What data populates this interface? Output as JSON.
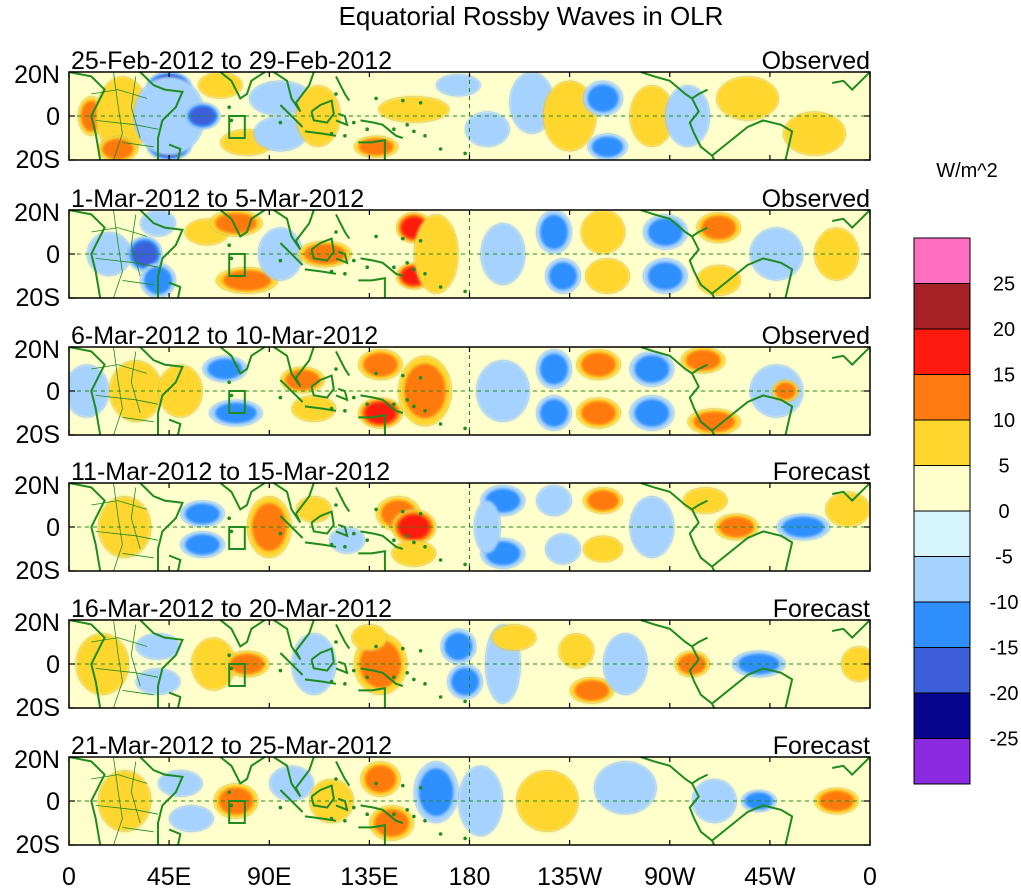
{
  "chart_data": {
    "type": "heatmap",
    "title": "Equatorial Rossby Waves in OLR",
    "units": "W/m^2",
    "x_ticks": [
      "0",
      "45E",
      "90E",
      "135E",
      "180",
      "135W",
      "90W",
      "45W",
      "0"
    ],
    "x_range_deg_east": [
      0,
      360
    ],
    "y_ticks": [
      "20N",
      "0",
      "20S"
    ],
    "y_range_deg": [
      -20,
      20
    ],
    "colorbar": {
      "levels": [
        "25",
        "20",
        "15",
        "10",
        "5",
        "0",
        "-5",
        "-10",
        "-15",
        "-20",
        "-25"
      ],
      "colors": [
        "#ff6fc0",
        "#a52125",
        "#ff1a10",
        "#ff7a10",
        "#ffd62e",
        "#ffffcc",
        "#d6f5ff",
        "#a6d2ff",
        "#2f8fff",
        "#3d5fd9",
        "#06068f",
        "#8a2be2"
      ]
    },
    "panels": [
      {
        "date_range": "25-Feb-2012 to 29-Feb-2012",
        "label": "Observed",
        "features": [
          {
            "lon": 10,
            "lat": 0,
            "w": 6,
            "h": 9,
            "v": 11
          },
          {
            "lon": 24,
            "lat": 0,
            "w": 12,
            "h": 18,
            "v": 5
          },
          {
            "lon": 22,
            "lat": -15,
            "w": 9,
            "h": 6,
            "v": 13
          },
          {
            "lon": 45,
            "lat": 14,
            "w": 10,
            "h": 6,
            "v": -20
          },
          {
            "lon": 45,
            "lat": -14,
            "w": 10,
            "h": 6,
            "v": -22
          },
          {
            "lon": 45,
            "lat": 0,
            "w": 16,
            "h": 18,
            "v": -9
          },
          {
            "lon": 60,
            "lat": 0,
            "w": 8,
            "h": 6,
            "v": -15
          },
          {
            "lon": 68,
            "lat": 14,
            "w": 10,
            "h": 6,
            "v": 6
          },
          {
            "lon": 80,
            "lat": -12,
            "w": 12,
            "h": 6,
            "v": 5
          },
          {
            "lon": 95,
            "lat": 8,
            "w": 14,
            "h": 8,
            "v": -6
          },
          {
            "lon": 95,
            "lat": -8,
            "w": 12,
            "h": 8,
            "v": -8
          },
          {
            "lon": 112,
            "lat": 0,
            "w": 10,
            "h": 14,
            "v": 6
          },
          {
            "lon": 138,
            "lat": -14,
            "w": 10,
            "h": 5,
            "v": 10
          },
          {
            "lon": 155,
            "lat": 3,
            "w": 16,
            "h": 6,
            "v": 6
          },
          {
            "lon": 175,
            "lat": 14,
            "w": 10,
            "h": 5,
            "v": -6
          },
          {
            "lon": 188,
            "lat": -6,
            "w": 10,
            "h": 8,
            "v": -5
          },
          {
            "lon": 208,
            "lat": 6,
            "w": 10,
            "h": 14,
            "v": -8
          },
          {
            "lon": 225,
            "lat": 0,
            "w": 12,
            "h": 16,
            "v": 5
          },
          {
            "lon": 240,
            "lat": 8,
            "w": 9,
            "h": 8,
            "v": -12
          },
          {
            "lon": 242,
            "lat": -14,
            "w": 9,
            "h": 6,
            "v": -12
          },
          {
            "lon": 262,
            "lat": 0,
            "w": 10,
            "h": 14,
            "v": 6
          },
          {
            "lon": 278,
            "lat": 0,
            "w": 10,
            "h": 14,
            "v": -6
          },
          {
            "lon": 305,
            "lat": 8,
            "w": 14,
            "h": 10,
            "v": 5
          },
          {
            "lon": 335,
            "lat": -8,
            "w": 14,
            "h": 10,
            "v": 6
          }
        ]
      },
      {
        "date_range": "1-Mar-2012 to 5-Mar-2012",
        "label": "Observed",
        "features": [
          {
            "lon": 18,
            "lat": 0,
            "w": 10,
            "h": 10,
            "v": -8
          },
          {
            "lon": 34,
            "lat": 0,
            "w": 8,
            "h": 8,
            "v": -16
          },
          {
            "lon": 40,
            "lat": -12,
            "w": 8,
            "h": 8,
            "v": -14
          },
          {
            "lon": 40,
            "lat": 14,
            "w": 8,
            "h": 6,
            "v": -6
          },
          {
            "lon": 62,
            "lat": 10,
            "w": 10,
            "h": 6,
            "v": 6
          },
          {
            "lon": 75,
            "lat": 14,
            "w": 12,
            "h": 6,
            "v": 10
          },
          {
            "lon": 80,
            "lat": -12,
            "w": 14,
            "h": 6,
            "v": 11
          },
          {
            "lon": 95,
            "lat": 0,
            "w": 10,
            "h": 12,
            "v": -6
          },
          {
            "lon": 115,
            "lat": 0,
            "w": 12,
            "h": 6,
            "v": 10
          },
          {
            "lon": 155,
            "lat": 12,
            "w": 8,
            "h": 7,
            "v": 15
          },
          {
            "lon": 155,
            "lat": -10,
            "w": 8,
            "h": 6,
            "v": 15
          },
          {
            "lon": 165,
            "lat": 0,
            "w": 10,
            "h": 18,
            "v": 5
          },
          {
            "lon": 195,
            "lat": 0,
            "w": 10,
            "h": 14,
            "v": -6
          },
          {
            "lon": 218,
            "lat": 10,
            "w": 8,
            "h": 10,
            "v": -12
          },
          {
            "lon": 222,
            "lat": -10,
            "w": 8,
            "h": 8,
            "v": -12
          },
          {
            "lon": 240,
            "lat": 10,
            "w": 10,
            "h": 10,
            "v": 6
          },
          {
            "lon": 242,
            "lat": -10,
            "w": 10,
            "h": 8,
            "v": 7
          },
          {
            "lon": 268,
            "lat": 10,
            "w": 10,
            "h": 8,
            "v": -10
          },
          {
            "lon": 268,
            "lat": -10,
            "w": 10,
            "h": 8,
            "v": -10
          },
          {
            "lon": 292,
            "lat": 12,
            "w": 10,
            "h": 7,
            "v": 10
          },
          {
            "lon": 292,
            "lat": -12,
            "w": 10,
            "h": 7,
            "v": 9
          },
          {
            "lon": 318,
            "lat": 0,
            "w": 12,
            "h": 12,
            "v": -6
          },
          {
            "lon": 345,
            "lat": 0,
            "w": 10,
            "h": 12,
            "v": 5
          }
        ]
      },
      {
        "date_range": "6-Mar-2012 to 10-Mar-2012",
        "label": "Observed",
        "features": [
          {
            "lon": 8,
            "lat": 0,
            "w": 10,
            "h": 12,
            "v": -6
          },
          {
            "lon": 30,
            "lat": 0,
            "w": 12,
            "h": 14,
            "v": 6
          },
          {
            "lon": 50,
            "lat": 0,
            "w": 10,
            "h": 12,
            "v": 5
          },
          {
            "lon": 70,
            "lat": 10,
            "w": 10,
            "h": 6,
            "v": -10
          },
          {
            "lon": 75,
            "lat": -10,
            "w": 12,
            "h": 6,
            "v": -12
          },
          {
            "lon": 105,
            "lat": 5,
            "w": 10,
            "h": 6,
            "v": 11
          },
          {
            "lon": 110,
            "lat": -8,
            "w": 10,
            "h": 6,
            "v": 7
          },
          {
            "lon": 140,
            "lat": 12,
            "w": 10,
            "h": 7,
            "v": 13
          },
          {
            "lon": 140,
            "lat": -10,
            "w": 10,
            "h": 7,
            "v": 16
          },
          {
            "lon": 160,
            "lat": 0,
            "w": 12,
            "h": 16,
            "v": 11
          },
          {
            "lon": 195,
            "lat": 0,
            "w": 12,
            "h": 14,
            "v": -6
          },
          {
            "lon": 218,
            "lat": 10,
            "w": 8,
            "h": 9,
            "v": -12
          },
          {
            "lon": 218,
            "lat": -10,
            "w": 8,
            "h": 8,
            "v": -14
          },
          {
            "lon": 238,
            "lat": 12,
            "w": 10,
            "h": 7,
            "v": 12
          },
          {
            "lon": 238,
            "lat": -10,
            "w": 10,
            "h": 7,
            "v": 12
          },
          {
            "lon": 262,
            "lat": 10,
            "w": 10,
            "h": 8,
            "v": -10
          },
          {
            "lon": 262,
            "lat": -10,
            "w": 10,
            "h": 8,
            "v": -10
          },
          {
            "lon": 285,
            "lat": 14,
            "w": 10,
            "h": 6,
            "v": 13
          },
          {
            "lon": 290,
            "lat": -14,
            "w": 12,
            "h": 6,
            "v": 13
          },
          {
            "lon": 318,
            "lat": 0,
            "w": 12,
            "h": 12,
            "v": -6
          },
          {
            "lon": 322,
            "lat": 0,
            "w": 6,
            "h": 5,
            "v": 11
          }
        ]
      },
      {
        "date_range": "11-Mar-2012 to 15-Mar-2012",
        "label": "Forecast",
        "features": [
          {
            "lon": 25,
            "lat": 0,
            "w": 12,
            "h": 14,
            "v": 5
          },
          {
            "lon": 60,
            "lat": 6,
            "w": 10,
            "h": 6,
            "v": -10
          },
          {
            "lon": 60,
            "lat": -8,
            "w": 10,
            "h": 6,
            "v": -10
          },
          {
            "lon": 90,
            "lat": 0,
            "w": 10,
            "h": 14,
            "v": 12
          },
          {
            "lon": 110,
            "lat": 8,
            "w": 8,
            "h": 6,
            "v": 5
          },
          {
            "lon": 125,
            "lat": -6,
            "w": 8,
            "h": 6,
            "v": -6
          },
          {
            "lon": 148,
            "lat": 6,
            "w": 10,
            "h": 8,
            "v": 11
          },
          {
            "lon": 155,
            "lat": 0,
            "w": 10,
            "h": 8,
            "v": 16
          },
          {
            "lon": 155,
            "lat": -12,
            "w": 10,
            "h": 6,
            "v": 8
          },
          {
            "lon": 195,
            "lat": 12,
            "w": 10,
            "h": 7,
            "v": -11
          },
          {
            "lon": 195,
            "lat": -12,
            "w": 10,
            "h": 7,
            "v": -11
          },
          {
            "lon": 188,
            "lat": 0,
            "w": 6,
            "h": 12,
            "v": -6
          },
          {
            "lon": 218,
            "lat": 12,
            "w": 8,
            "h": 7,
            "v": -8
          },
          {
            "lon": 222,
            "lat": -10,
            "w": 8,
            "h": 7,
            "v": -8
          },
          {
            "lon": 240,
            "lat": 12,
            "w": 9,
            "h": 6,
            "v": 13
          },
          {
            "lon": 240,
            "lat": -10,
            "w": 9,
            "h": 6,
            "v": 7
          },
          {
            "lon": 262,
            "lat": 0,
            "w": 10,
            "h": 14,
            "v": -6
          },
          {
            "lon": 286,
            "lat": 12,
            "w": 10,
            "h": 6,
            "v": 9
          },
          {
            "lon": 300,
            "lat": 0,
            "w": 10,
            "h": 6,
            "v": 12
          },
          {
            "lon": 330,
            "lat": 0,
            "w": 12,
            "h": 6,
            "v": -12
          },
          {
            "lon": 350,
            "lat": 8,
            "w": 10,
            "h": 8,
            "v": 5
          }
        ]
      },
      {
        "date_range": "16-Mar-2012 to 20-Mar-2012",
        "label": "Forecast",
        "features": [
          {
            "lon": 15,
            "lat": 0,
            "w": 12,
            "h": 14,
            "v": 6
          },
          {
            "lon": 40,
            "lat": 8,
            "w": 10,
            "h": 6,
            "v": -8
          },
          {
            "lon": 40,
            "lat": -8,
            "w": 10,
            "h": 6,
            "v": -8
          },
          {
            "lon": 65,
            "lat": 0,
            "w": 10,
            "h": 12,
            "v": 5
          },
          {
            "lon": 80,
            "lat": 0,
            "w": 10,
            "h": 6,
            "v": 12
          },
          {
            "lon": 110,
            "lat": 0,
            "w": 10,
            "h": 14,
            "v": -6
          },
          {
            "lon": 140,
            "lat": 0,
            "w": 12,
            "h": 14,
            "v": 11
          },
          {
            "lon": 135,
            "lat": 12,
            "w": 8,
            "h": 6,
            "v": 6
          },
          {
            "lon": 175,
            "lat": 8,
            "w": 8,
            "h": 8,
            "v": -10
          },
          {
            "lon": 178,
            "lat": -8,
            "w": 8,
            "h": 8,
            "v": -10
          },
          {
            "lon": 195,
            "lat": 0,
            "w": 8,
            "h": 18,
            "v": -5
          },
          {
            "lon": 200,
            "lat": 12,
            "w": 10,
            "h": 6,
            "v": 5
          },
          {
            "lon": 228,
            "lat": 6,
            "w": 8,
            "h": 8,
            "v": 6
          },
          {
            "lon": 235,
            "lat": -12,
            "w": 10,
            "h": 6,
            "v": 11
          },
          {
            "lon": 250,
            "lat": 0,
            "w": 10,
            "h": 14,
            "v": -6
          },
          {
            "lon": 280,
            "lat": 0,
            "w": 8,
            "h": 6,
            "v": 10
          },
          {
            "lon": 310,
            "lat": 0,
            "w": 12,
            "h": 6,
            "v": -10
          },
          {
            "lon": 355,
            "lat": 0,
            "w": 8,
            "h": 8,
            "v": 5
          }
        ]
      },
      {
        "date_range": "21-Mar-2012 to 25-Mar-2012",
        "label": "Forecast",
        "features": [
          {
            "lon": 25,
            "lat": 0,
            "w": 12,
            "h": 14,
            "v": 5
          },
          {
            "lon": 50,
            "lat": 8,
            "w": 10,
            "h": 6,
            "v": -7
          },
          {
            "lon": 55,
            "lat": -8,
            "w": 10,
            "h": 6,
            "v": -6
          },
          {
            "lon": 75,
            "lat": 0,
            "w": 10,
            "h": 8,
            "v": 13
          },
          {
            "lon": 100,
            "lat": 8,
            "w": 10,
            "h": 8,
            "v": -6
          },
          {
            "lon": 118,
            "lat": 0,
            "w": 10,
            "h": 10,
            "v": 5
          },
          {
            "lon": 140,
            "lat": 10,
            "w": 9,
            "h": 8,
            "v": 13
          },
          {
            "lon": 145,
            "lat": -10,
            "w": 10,
            "h": 8,
            "v": 12
          },
          {
            "lon": 165,
            "lat": 4,
            "w": 10,
            "h": 14,
            "v": -10
          },
          {
            "lon": 185,
            "lat": 0,
            "w": 10,
            "h": 16,
            "v": -5
          },
          {
            "lon": 215,
            "lat": 0,
            "w": 14,
            "h": 14,
            "v": 5
          },
          {
            "lon": 250,
            "lat": 6,
            "w": 14,
            "h": 12,
            "v": -5
          },
          {
            "lon": 290,
            "lat": 0,
            "w": 10,
            "h": 10,
            "v": -6
          },
          {
            "lon": 310,
            "lat": 0,
            "w": 8,
            "h": 5,
            "v": -10
          },
          {
            "lon": 345,
            "lat": 0,
            "w": 10,
            "h": 6,
            "v": 12
          }
        ]
      }
    ]
  }
}
